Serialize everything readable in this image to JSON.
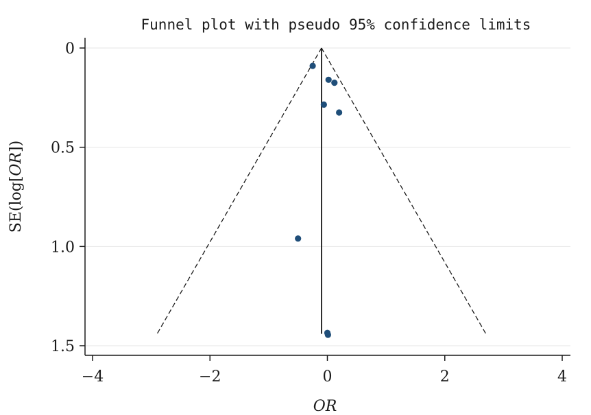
{
  "chart_data": {
    "type": "scatter",
    "title": "Funnel plot with pseudo 95% confidence limits",
    "xlabel": "OR",
    "ylabel_prefix": "SE(log[",
    "ylabel_italic": "OR",
    "ylabel_suffix": "])",
    "xlim": [
      -4,
      4
    ],
    "ylim": [
      0,
      1.5
    ],
    "y_reversed": true,
    "x_ticks": [
      -4,
      -2,
      0,
      2,
      4
    ],
    "x_tick_labels": [
      "−4",
      "−2",
      "0",
      "2",
      "4"
    ],
    "y_ticks": [
      0,
      0.5,
      1.0,
      1.5
    ],
    "y_tick_labels": [
      "0",
      "0.5",
      "1.0",
      "1.5"
    ],
    "grid": true,
    "pooled_estimate": -0.1,
    "pseudo_ci_lines": {
      "apex": [
        -0.1,
        0
      ],
      "left_end": [
        -2.9,
        1.44
      ],
      "right_end": [
        2.7,
        1.44
      ]
    },
    "points": [
      {
        "x": -0.25,
        "y": 0.09
      },
      {
        "x": 0.02,
        "y": 0.16
      },
      {
        "x": 0.12,
        "y": 0.175
      },
      {
        "x": -0.06,
        "y": 0.285
      },
      {
        "x": 0.2,
        "y": 0.325
      },
      {
        "x": -0.5,
        "y": 0.96
      },
      {
        "x": 0.0,
        "y": 1.435
      },
      {
        "x": 0.01,
        "y": 1.445
      }
    ],
    "colors": {
      "points": "#1f4e79",
      "lines": "#1a1a1a",
      "grid": "#e6e6e6"
    }
  }
}
